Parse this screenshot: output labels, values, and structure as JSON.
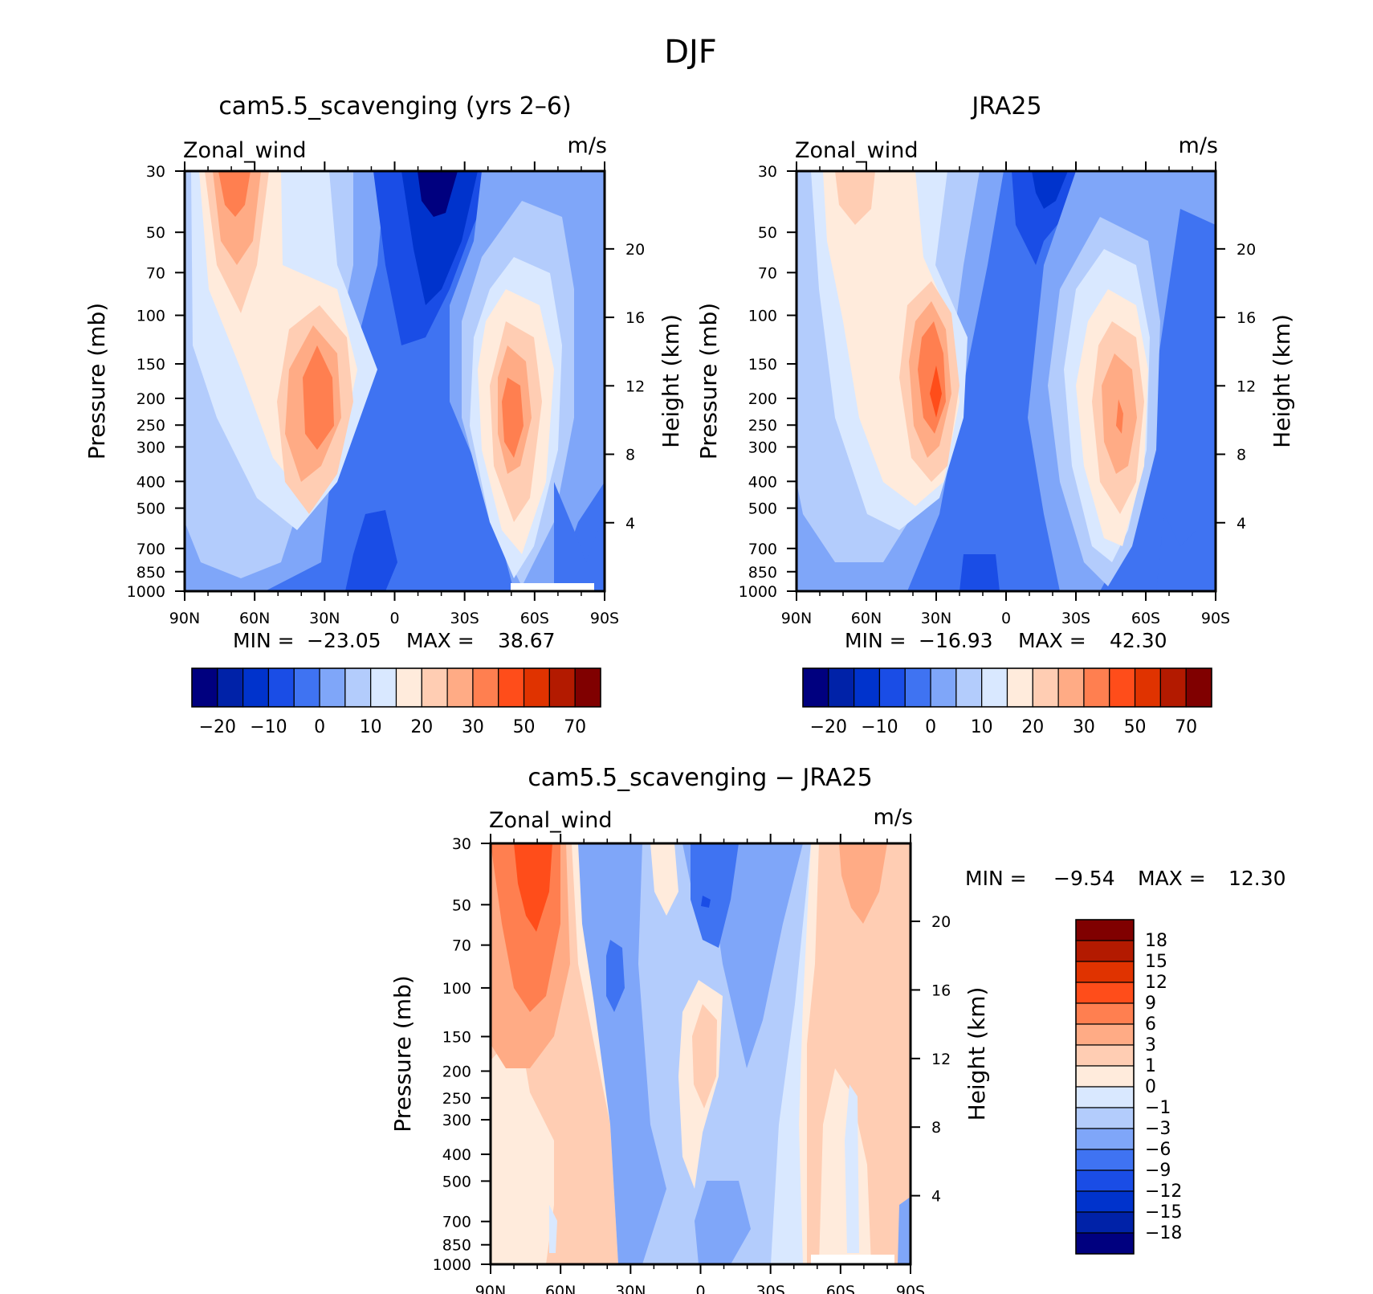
{
  "figure": {
    "title": "DJF"
  },
  "colors": {
    "abs_palette": [
      "#00007f",
      "#0022a8",
      "#0033cc",
      "#1a4de6",
      "#3f73f2",
      "#7fa6f9",
      "#b3ccfc",
      "#d9e8ff",
      "#ffebdc",
      "#ffcdb3",
      "#ffab85",
      "#ff7f50",
      "#ff4d1a",
      "#e03300",
      "#b31a00",
      "#800000"
    ],
    "diff_palette": [
      "#00007f",
      "#0022a8",
      "#0033cc",
      "#1a4de6",
      "#3f73f2",
      "#7fa6f9",
      "#b3ccfc",
      "#d9e8ff",
      "#ffebdc",
      "#ffcdb3",
      "#ffab85",
      "#ff7f50",
      "#ff4d1a",
      "#e03300",
      "#b31a00",
      "#800000"
    ]
  },
  "chart_data": [
    {
      "type": "heatmap",
      "id": "model",
      "title": "cam5.5_scavenging (yrs 2–6)",
      "variable": "Zonal_wind",
      "units": "m/s",
      "xlabel": "",
      "ylabel": "Pressure (mb)",
      "ylabel_right": "Height (km)",
      "x_ticks": [
        "90N",
        "60N",
        "30N",
        "0",
        "30S",
        "60S",
        "90S"
      ],
      "x_values": [
        90,
        60,
        30,
        0,
        -30,
        -60,
        -90
      ],
      "y_ticks": [
        "30",
        "50",
        "70",
        "100",
        "150",
        "200",
        "250",
        "300",
        "400",
        "500",
        "700",
        "850",
        "1000"
      ],
      "y_values": [
        30,
        50,
        70,
        100,
        150,
        200,
        250,
        300,
        400,
        500,
        700,
        850,
        1000
      ],
      "height_ticks": [
        "4",
        "8",
        "12",
        "16",
        "20"
      ],
      "height_values": [
        4,
        8,
        12,
        16,
        20
      ],
      "min_label": "MIN =",
      "min_value": "−23.05",
      "max_label": "MAX =",
      "max_value": "38.67",
      "colorbar_labels": [
        "−20",
        "−10",
        "0",
        "10",
        "20",
        "30",
        "50",
        "70"
      ],
      "jets": [
        {
          "lat": 35,
          "p": 200,
          "u": 38.67
        },
        {
          "lat": 72,
          "p": 35,
          "u": 24
        },
        {
          "lat": -47,
          "p": 250,
          "u": 33
        },
        {
          "lat": -15,
          "p": 30,
          "u": -23.05
        }
      ]
    },
    {
      "type": "heatmap",
      "id": "obs",
      "title": "JRA25",
      "variable": "Zonal_wind",
      "units": "m/s",
      "xlabel": "",
      "ylabel": "Pressure (mb)",
      "ylabel_right": "Height (km)",
      "x_ticks": [
        "90N",
        "60N",
        "30N",
        "0",
        "30S",
        "60S",
        "90S"
      ],
      "x_values": [
        90,
        60,
        30,
        0,
        -30,
        -60,
        -90
      ],
      "y_ticks": [
        "30",
        "50",
        "70",
        "100",
        "150",
        "200",
        "250",
        "300",
        "400",
        "500",
        "700",
        "850",
        "1000"
      ],
      "y_values": [
        30,
        50,
        70,
        100,
        150,
        200,
        250,
        300,
        400,
        500,
        700,
        850,
        1000
      ],
      "height_ticks": [
        "4",
        "8",
        "12",
        "16",
        "20"
      ],
      "height_values": [
        4,
        8,
        12,
        16,
        20
      ],
      "min_label": "MIN =",
      "min_value": "−16.93",
      "max_label": "MAX =",
      "max_value": "42.30",
      "colorbar_labels": [
        "−20",
        "−10",
        "0",
        "10",
        "20",
        "30",
        "50",
        "70"
      ],
      "jets": [
        {
          "lat": 30,
          "p": 200,
          "u": 42.3
        },
        {
          "lat": -48,
          "p": 250,
          "u": 36
        },
        {
          "lat": -15,
          "p": 30,
          "u": -16.93
        }
      ]
    },
    {
      "type": "heatmap",
      "id": "diff",
      "title": "cam5.5_scavenging − JRA25",
      "variable": "Zonal_wind",
      "units": "m/s",
      "xlabel": "",
      "ylabel": "Pressure (mb)",
      "ylabel_right": "Height (km)",
      "x_ticks": [
        "90N",
        "60N",
        "30N",
        "0",
        "30S",
        "60S",
        "90S"
      ],
      "x_values": [
        90,
        60,
        30,
        0,
        -30,
        -60,
        -90
      ],
      "y_ticks": [
        "30",
        "50",
        "70",
        "100",
        "150",
        "200",
        "250",
        "300",
        "400",
        "500",
        "700",
        "850",
        "1000"
      ],
      "y_values": [
        30,
        50,
        70,
        100,
        150,
        200,
        250,
        300,
        400,
        500,
        700,
        850,
        1000
      ],
      "height_ticks": [
        "4",
        "8",
        "12",
        "16",
        "20"
      ],
      "height_values": [
        4,
        8,
        12,
        16,
        20
      ],
      "min_label": "MIN =",
      "min_value": "−9.54",
      "max_label": "MAX =",
      "max_value": "12.30",
      "colorbar_labels": [
        "18",
        "15",
        "12",
        "9",
        "6",
        "3",
        "1",
        "0",
        "−1",
        "−3",
        "−6",
        "−9",
        "−12",
        "−15",
        "−18"
      ],
      "anomalies": [
        {
          "lat": 73,
          "p": 40,
          "u": 12.3
        },
        {
          "lat": 5,
          "p": 50,
          "u": -9.54
        },
        {
          "lat": -6,
          "p": 180,
          "u": 4
        },
        {
          "lat": -65,
          "p": 50,
          "u": 4
        }
      ]
    }
  ]
}
